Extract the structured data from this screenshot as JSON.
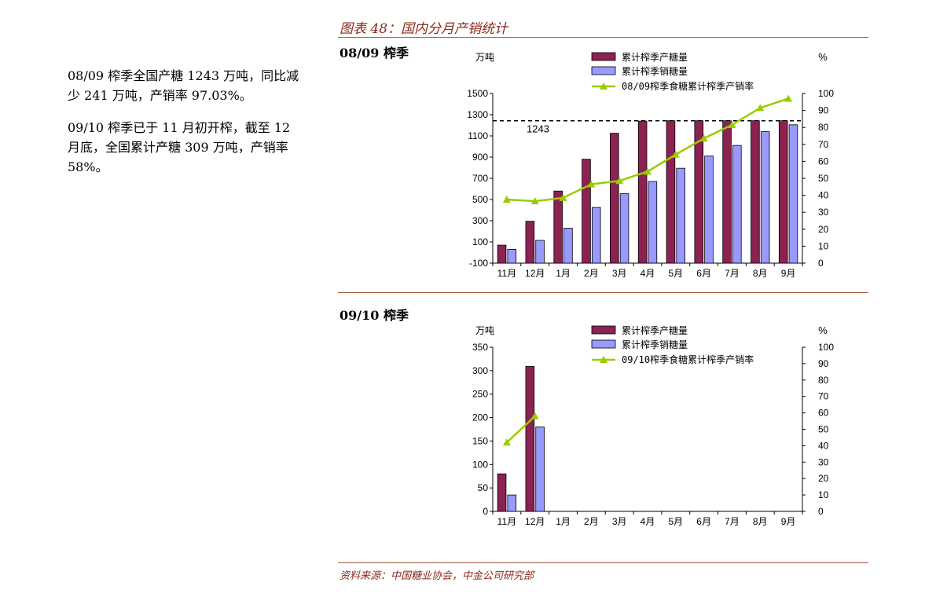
{
  "figure_title": "图表 48：国内分月产销统计",
  "source": "资料来源：中国糖业协会，中金公司研究部",
  "left_text": {
    "p1": "08/09 榨季全国产糖 1243 万吨，同比减少 241 万吨，产销率 97.03%。",
    "p2": "09/10 榨季已于 11 月初开榨，截至 12 月底，全国累计产糖 309 万吨，产销率 58%。"
  },
  "sections": {
    "s1_label": "08/09 榨季",
    "s2_label": "09/10 榨季"
  },
  "colors": {
    "production": "#8b2252",
    "sales": "#9999ff",
    "rate": "#99cc00",
    "title": "#8b2a1a"
  },
  "chart_data": [
    {
      "type": "bar",
      "id": "c1",
      "categories": [
        "11月",
        "12月",
        "1月",
        "2月",
        "3月",
        "4月",
        "5月",
        "6月",
        "7月",
        "8月",
        "9月"
      ],
      "ylabel": "万吨",
      "y2label": "%",
      "ylim": [
        -100,
        1500
      ],
      "yticks": [
        -100,
        100,
        300,
        500,
        700,
        900,
        1100,
        1300,
        1500
      ],
      "y2lim": [
        0,
        100
      ],
      "y2ticks": [
        0,
        10,
        20,
        30,
        40,
        50,
        60,
        70,
        80,
        90,
        100
      ],
      "legend_position": "top-center",
      "series": [
        {
          "name": "累计榨季产糖量",
          "kind": "bar",
          "values": [
            70,
            295,
            580,
            880,
            1125,
            1240,
            1243,
            1243,
            1243,
            1243,
            1243
          ]
        },
        {
          "name": "累计榨季销糖量",
          "kind": "bar",
          "values": [
            30,
            115,
            230,
            425,
            555,
            670,
            795,
            910,
            1010,
            1140,
            1205
          ]
        },
        {
          "name": "08/09榨季食糖累计榨季产销率",
          "kind": "line",
          "axis": "right",
          "values": [
            37.5,
            36.5,
            38.5,
            46.5,
            48.5,
            54,
            64,
            73.5,
            81.5,
            91.5,
            97
          ]
        }
      ],
      "reference_line": {
        "value": 1243,
        "label": "1243"
      }
    },
    {
      "type": "bar",
      "id": "c2",
      "categories": [
        "11月",
        "12月",
        "1月",
        "2月",
        "3月",
        "4月",
        "5月",
        "6月",
        "7月",
        "8月",
        "9月"
      ],
      "ylabel": "万吨",
      "y2label": "%",
      "ylim": [
        0,
        350
      ],
      "yticks": [
        0,
        50,
        100,
        150,
        200,
        250,
        300,
        350
      ],
      "y2lim": [
        0,
        100
      ],
      "y2ticks": [
        0,
        10,
        20,
        30,
        40,
        50,
        60,
        70,
        80,
        90,
        100
      ],
      "legend_position": "top-center",
      "series": [
        {
          "name": "累计榨季产糖量",
          "kind": "bar",
          "values": [
            80,
            309,
            null,
            null,
            null,
            null,
            null,
            null,
            null,
            null,
            null
          ]
        },
        {
          "name": "累计榨季销糖量",
          "kind": "bar",
          "values": [
            35,
            180,
            null,
            null,
            null,
            null,
            null,
            null,
            null,
            null,
            null
          ]
        },
        {
          "name": "09/10榨季食糖累计榨季产销率",
          "kind": "line",
          "axis": "right",
          "values": [
            42,
            58,
            null,
            null,
            null,
            null,
            null,
            null,
            null,
            null,
            null
          ]
        }
      ]
    }
  ]
}
